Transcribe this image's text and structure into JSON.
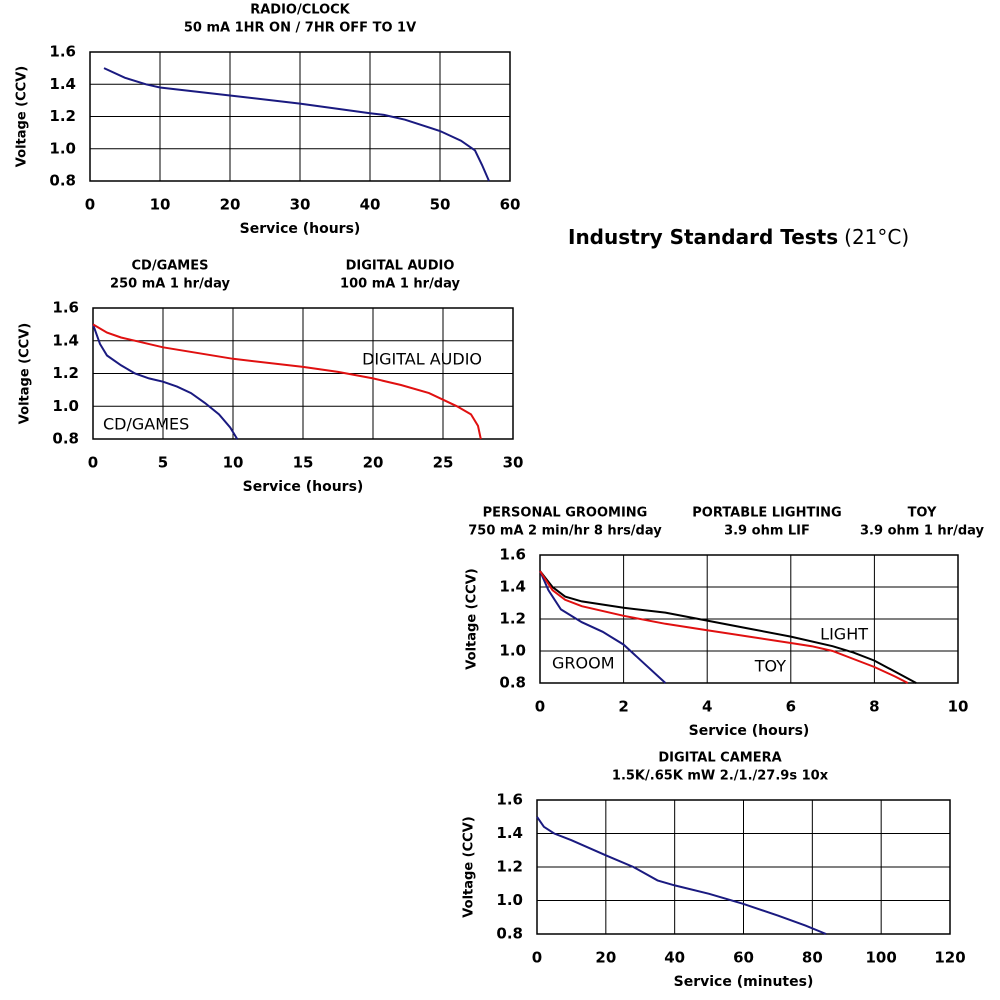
{
  "heading": {
    "bold": "Industry Standard Tests",
    "rest": "(21°C)"
  },
  "chart_data": [
    {
      "type": "line",
      "tests": [
        {
          "name": "RADIO/CLOCK",
          "condition": "50 mA 1HR ON / 7HR OFF TO 1V"
        }
      ],
      "xlabel": "Service (hours)",
      "ylabel": "Voltage (CCV)",
      "xlim": [
        0,
        60
      ],
      "xticks": [
        0,
        10,
        20,
        30,
        40,
        50,
        60
      ],
      "ylim": [
        0.8,
        1.6
      ],
      "yticks": [
        0.8,
        {
          "value": 1,
          "label": "1.0"
        },
        1.2,
        1.4,
        1.6
      ],
      "grid": true,
      "series": [
        {
          "color": "#1a1a80",
          "x": [
            2,
            5,
            8,
            10,
            20,
            30,
            40,
            42,
            45,
            50,
            53,
            55,
            56,
            57
          ],
          "values": [
            1.5,
            1.44,
            1.4,
            1.38,
            1.33,
            1.28,
            1.22,
            1.21,
            1.18,
            1.11,
            1.05,
            0.99,
            0.9,
            0.8
          ]
        }
      ]
    },
    {
      "type": "line",
      "tests": [
        {
          "name": "CD/GAMES",
          "condition": "250 mA 1 hr/day"
        },
        {
          "name": "DIGITAL AUDIO",
          "condition": "100 mA 1 hr/day"
        }
      ],
      "xlabel": "Service (hours)",
      "ylabel": "Voltage (CCV)",
      "xlim": [
        0,
        30
      ],
      "xticks": [
        0,
        5,
        10,
        15,
        20,
        25,
        30
      ],
      "ylim": [
        0.8,
        1.6
      ],
      "yticks": [
        0.8,
        {
          "value": 1,
          "label": "1.0"
        },
        1.2,
        1.4,
        1.6
      ],
      "grid": true,
      "series": [
        {
          "name": "CD/GAMES",
          "color": "#1a1a80",
          "x": [
            0,
            0.5,
            1,
            2,
            3,
            4,
            5,
            6,
            7,
            8,
            9,
            9.8,
            10.3
          ],
          "values": [
            1.5,
            1.38,
            1.31,
            1.25,
            1.2,
            1.17,
            1.15,
            1.12,
            1.08,
            1.02,
            0.95,
            0.87,
            0.8
          ]
        },
        {
          "name": "DIGITAL AUDIO",
          "color": "#e01010",
          "x": [
            0,
            1,
            2,
            5,
            10,
            15,
            17.5,
            20,
            22,
            24,
            25,
            26,
            27,
            27.5,
            27.7
          ],
          "values": [
            1.5,
            1.45,
            1.42,
            1.36,
            1.29,
            1.24,
            1.21,
            1.17,
            1.13,
            1.08,
            1.04,
            1.0,
            0.95,
            0.88,
            0.8
          ]
        }
      ]
    },
    {
      "type": "line",
      "tests": [
        {
          "name": "PERSONAL GROOMING",
          "condition": "750 mA 2 min/hr 8 hrs/day"
        },
        {
          "name": "PORTABLE LIGHTING",
          "condition": "3.9 ohm LIF"
        },
        {
          "name": "TOY",
          "condition": "3.9 ohm 1 hr/day"
        }
      ],
      "xlabel": "Service (hours)",
      "ylabel": "Voltage (CCV)",
      "xlim": [
        0,
        10
      ],
      "xticks": [
        0,
        2,
        4,
        6,
        8,
        10
      ],
      "ylim": [
        0.8,
        1.6
      ],
      "yticks": [
        0.8,
        {
          "value": 1,
          "label": "1.0"
        },
        1.2,
        1.4,
        1.6
      ],
      "grid": true,
      "series": [
        {
          "name": "GROOM",
          "color": "#1a1a80",
          "x": [
            0,
            0.2,
            0.5,
            1,
            1.5,
            2,
            2.5,
            3
          ],
          "values": [
            1.5,
            1.38,
            1.26,
            1.18,
            1.12,
            1.04,
            0.92,
            0.8
          ]
        },
        {
          "name": "LIGHT",
          "color": "#000000",
          "x": [
            0,
            0.3,
            0.6,
            1,
            2,
            3,
            4,
            5,
            6,
            7,
            7.5,
            8,
            8.5,
            9
          ],
          "values": [
            1.5,
            1.4,
            1.34,
            1.31,
            1.27,
            1.24,
            1.19,
            1.14,
            1.09,
            1.03,
            0.99,
            0.94,
            0.87,
            0.8
          ]
        },
        {
          "name": "TOY",
          "color": "#e01010",
          "x": [
            0,
            0.3,
            0.6,
            1,
            2,
            3,
            4,
            5,
            6,
            6.5,
            7,
            7.5,
            8,
            8.5,
            8.8
          ],
          "values": [
            1.5,
            1.38,
            1.32,
            1.28,
            1.22,
            1.17,
            1.13,
            1.09,
            1.05,
            1.03,
            1.0,
            0.95,
            0.9,
            0.84,
            0.8
          ]
        }
      ]
    },
    {
      "type": "line",
      "tests": [
        {
          "name": "DIGITAL CAMERA",
          "condition": "1.5K/.65K mW 2./1./27.9s 10x"
        }
      ],
      "xlabel": "Service (minutes)",
      "ylabel": "Voltage (CCV)",
      "xlim": [
        0,
        120
      ],
      "xticks": [
        0,
        20,
        40,
        60,
        80,
        100,
        120
      ],
      "ylim": [
        0.8,
        1.6
      ],
      "yticks": [
        0.8,
        {
          "value": 1,
          "label": "1.0"
        },
        1.2,
        1.4,
        1.6
      ],
      "grid": true,
      "series": [
        {
          "color": "#1a1a80",
          "x": [
            0,
            2,
            5,
            10,
            20,
            28,
            35,
            40,
            50,
            60,
            70,
            78,
            84
          ],
          "values": [
            1.5,
            1.44,
            1.4,
            1.36,
            1.27,
            1.2,
            1.12,
            1.09,
            1.04,
            0.98,
            0.91,
            0.85,
            0.8
          ]
        }
      ]
    }
  ]
}
